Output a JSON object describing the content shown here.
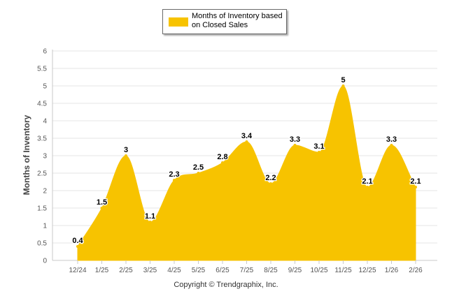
{
  "chart_data": {
    "type": "area",
    "ylabel": "Months of Inventory",
    "xlabel": "",
    "ylim": [
      0,
      6
    ],
    "yticks": [
      "0",
      "0.5",
      "1",
      "1.5",
      "2",
      "2.5",
      "3",
      "3.5",
      "4",
      "4.5",
      "5",
      "5.5",
      "6"
    ],
    "categories": [
      "12/24",
      "1/25",
      "2/25",
      "3/25",
      "4/25",
      "5/25",
      "6/25",
      "7/25",
      "8/25",
      "9/25",
      "10/25",
      "11/25",
      "12/25",
      "1/26",
      "2/26"
    ],
    "series": [
      {
        "name": "Months of Inventory based on Closed Sales",
        "values": [
          0.4,
          1.5,
          3,
          1.1,
          2.3,
          2.5,
          2.8,
          3.4,
          2.2,
          3.3,
          3.1,
          5,
          2.1,
          3.3,
          2.1
        ],
        "data_labels": [
          "0.4",
          "1.5",
          "3",
          "1.1",
          "2.3",
          "2.5",
          "2.8",
          "3.4",
          "2.2",
          "3.3",
          "3.1",
          "5",
          "2.1",
          "3.3",
          "2.1"
        ],
        "color": "#f7c300"
      }
    ],
    "grid": true,
    "legend_position": "top-center"
  },
  "footer": "Copyright © Trendgraphix, Inc."
}
